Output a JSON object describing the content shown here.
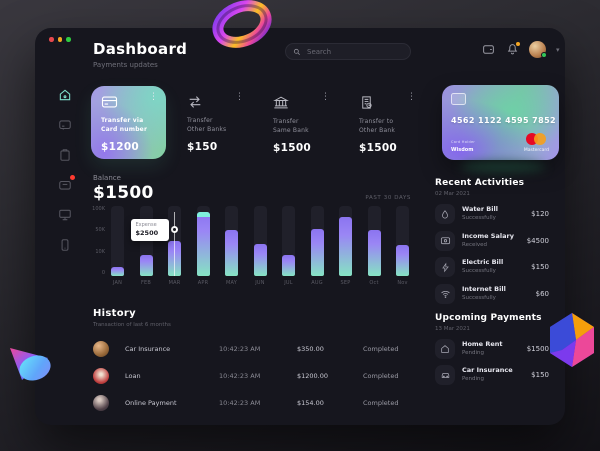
{
  "header": {
    "title": "Dashboard",
    "subtitle": "Payments updates"
  },
  "search": {
    "placeholder": "Search"
  },
  "topbar": {
    "icons": [
      "wallet-icon",
      "notifications-bell-icon",
      "avatar",
      "chevron-down-icon"
    ]
  },
  "sidebar": {
    "items": [
      {
        "name": "home",
        "active": true
      },
      {
        "name": "cards",
        "active": false
      },
      {
        "name": "orders",
        "active": false
      },
      {
        "name": "wallet",
        "active": false,
        "badge": true
      },
      {
        "name": "monitor",
        "active": false
      },
      {
        "name": "mobile",
        "active": false
      }
    ]
  },
  "transfer_cards": [
    {
      "label_line1": "Transfer via",
      "label_line2": "Card number",
      "amount": "$1200",
      "icon": "credit-card",
      "highlighted": true
    },
    {
      "label_line1": "Transfer",
      "label_line2": "Other Banks",
      "amount": "$150",
      "icon": "transfer-arrows",
      "highlighted": false
    },
    {
      "label_line1": "Transfer",
      "label_line2": "Same Bank",
      "amount": "$1500",
      "icon": "bank",
      "highlighted": false
    },
    {
      "label_line1": "Transfer to",
      "label_line2": "Other Bank",
      "amount": "$1500",
      "icon": "invoice",
      "highlighted": false
    }
  ],
  "credit_card": {
    "number": "4562 1122 4595 7852",
    "holder_label": "Card Holder",
    "holder": "Wisdom",
    "brand": "Mastercard"
  },
  "balance": {
    "label": "Balance",
    "amount": "$1500",
    "period": "PAST 30 DAYS"
  },
  "chart_data": {
    "type": "bar",
    "title": "Balance past 30 days",
    "categories": [
      "JAN",
      "FEB",
      "MAR",
      "APR",
      "MAY",
      "JUN",
      "JUL",
      "AUG",
      "SEP",
      "Oct",
      "Nov"
    ],
    "values_pct_of_max": [
      13,
      30,
      50,
      92,
      66,
      46,
      30,
      67,
      84,
      66,
      45
    ],
    "y_tick_labels": [
      "100K",
      "50K",
      "10K",
      "0"
    ],
    "xlabel": "",
    "ylabel": "",
    "grid": false,
    "tooltip": {
      "label": "Expense",
      "value": "$2500",
      "category": "MAR"
    },
    "highlight_cap_category": "APR",
    "colors": {
      "bar_top": "#8b74f0",
      "bar_bottom": "#86e3c3",
      "track": "#20202a",
      "cap": "#7ff0dd"
    }
  },
  "history": {
    "title": "History",
    "subtitle": "Transaction of last 6 months",
    "rows": [
      {
        "name": "Car Insurance",
        "time": "10:42:23 AM",
        "amount": "$350.00",
        "status": "Completed"
      },
      {
        "name": "Loan",
        "time": "10:42:23 AM",
        "amount": "$1200.00",
        "status": "Completed"
      },
      {
        "name": "Online Payment",
        "time": "10:42:23 AM",
        "amount": "$154.00",
        "status": "Completed"
      }
    ]
  },
  "recent_activities": {
    "title": "Recent Activities",
    "date": "02 Mar 2021",
    "items": [
      {
        "title": "Water Bill",
        "subtitle": "Successfully",
        "amount": "$120",
        "icon": "water-drop"
      },
      {
        "title": "Income Salary",
        "subtitle": "Received",
        "amount": "$4500",
        "icon": "salary-wallet"
      },
      {
        "title": "Electric Bill",
        "subtitle": "Successfully",
        "amount": "$150",
        "icon": "lightning-bolt"
      },
      {
        "title": "Internet Bill",
        "subtitle": "Successfully",
        "amount": "$60",
        "icon": "wifi"
      }
    ]
  },
  "upcoming_payments": {
    "title": "Upcoming Payments",
    "date": "13 Mar 2021",
    "items": [
      {
        "title": "Home Rent",
        "subtitle": "Pending",
        "amount": "$1500",
        "icon": "home"
      },
      {
        "title": "Car Insurance",
        "subtitle": "Pending",
        "amount": "$150",
        "icon": "car"
      }
    ]
  },
  "colors": {
    "accent_teal": "#7fe0cd",
    "badge_red": "#ff3b30",
    "notification_orange": "#f5a623",
    "online_green": "#34c759",
    "mastercard_red": "#eb001b",
    "mastercard_orange": "#f79e1b",
    "window_bg": "#16161e"
  }
}
